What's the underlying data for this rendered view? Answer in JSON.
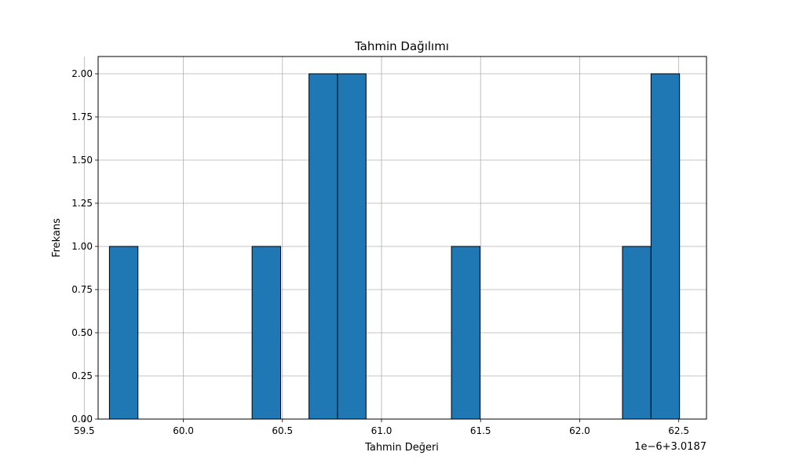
{
  "chart_data": {
    "type": "bar",
    "title": "Tahmin Dağılımı",
    "xlabel": "Tahmin Değeri",
    "ylabel": "Frekans",
    "offset_label": "1e−6+3.0187",
    "bin_edges": [
      59.627,
      59.771,
      59.915,
      60.059,
      60.203,
      60.347,
      60.491,
      60.634,
      60.778,
      60.922,
      61.066,
      61.21,
      61.353,
      61.497,
      61.641,
      61.785,
      61.929,
      62.073,
      62.216,
      62.36,
      62.504
    ],
    "values": [
      1,
      0,
      0,
      0,
      0,
      1,
      0,
      2,
      2,
      0,
      0,
      0,
      1,
      0,
      0,
      0,
      0,
      0,
      1,
      2
    ],
    "xlim": [
      59.57,
      62.64
    ],
    "ylim": [
      0,
      2.1
    ],
    "x_ticks": [
      "59.5",
      "60.0",
      "60.5",
      "61.0",
      "61.5",
      "62.0",
      "62.5"
    ],
    "y_ticks": [
      "0.00",
      "0.25",
      "0.50",
      "0.75",
      "1.00",
      "1.25",
      "1.50",
      "1.75",
      "2.00"
    ],
    "grid": true,
    "bar_color": "#1f77b4",
    "edge_color": "#000000"
  }
}
